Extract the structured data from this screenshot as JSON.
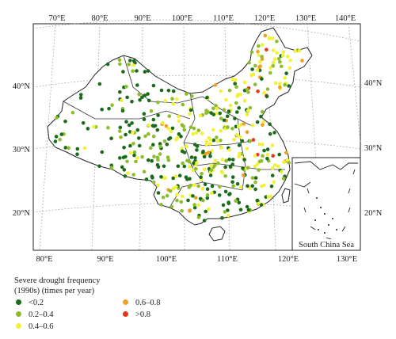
{
  "map": {
    "top_lon_labels": [
      "70°E",
      "80°E",
      "90°E",
      "100°E",
      "110°E",
      "120°E",
      "130°E",
      "140°E"
    ],
    "bottom_lon_labels": [
      "80°E",
      "90°E",
      "100°E",
      "110°E",
      "120°E",
      "130°E"
    ],
    "left_lat_labels": [
      "40°N",
      "30°N",
      "20°N"
    ],
    "right_lat_labels": [
      "40°N",
      "30°N",
      "20°N"
    ],
    "inset_label": "South China Sea"
  },
  "legend": {
    "title_line1": "Severe drought frequency",
    "title_line2": "(1990s) (times per year)",
    "items": [
      {
        "label": "<0.2",
        "color": "#1a6b1a"
      },
      {
        "label": "0.2–0.4",
        "color": "#8dbd2c"
      },
      {
        "label": "0.4–0.6",
        "color": "#f1f13a"
      },
      {
        "label": "0.6–0.8",
        "color": "#f0a020"
      },
      {
        "label": ">0.8",
        "color": "#e8341c"
      }
    ]
  }
}
